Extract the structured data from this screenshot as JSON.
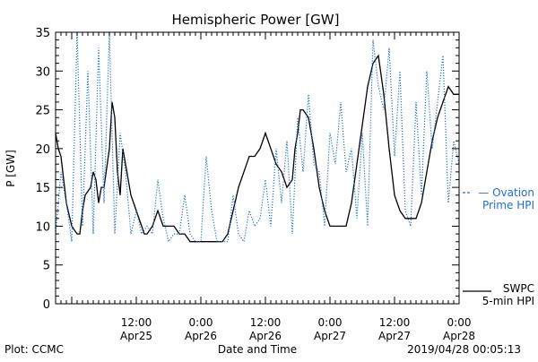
{
  "footer": {
    "plot_credit": "Plot: CCMC",
    "timestamp": "2019/04/28 00:05:13"
  },
  "colors": {
    "swpc": "#000000",
    "ovation": "#1f6fd0",
    "axes": "#000000"
  },
  "chart_data": {
    "type": "line",
    "title": "Hemispheric Power [GW]",
    "xlabel": "Date and Time",
    "ylabel": "P [GW]",
    "ylim": [
      0,
      35
    ],
    "yticks": [
      0,
      5,
      10,
      15,
      20,
      25,
      30,
      35
    ],
    "xlim": [
      "2019-04-24T21:00",
      "2019-04-28T00:00"
    ],
    "xticks": [
      {
        "x": "2019-04-25T12:00",
        "time": "12:00",
        "date": "Apr25"
      },
      {
        "x": "2019-04-26T00:00",
        "time": "0:00",
        "date": "Apr26"
      },
      {
        "x": "2019-04-26T12:00",
        "time": "12:00",
        "date": "Apr26"
      },
      {
        "x": "2019-04-27T00:00",
        "time": "0:00",
        "date": "Apr27"
      },
      {
        "x": "2019-04-27T12:00",
        "time": "12:00",
        "date": "Apr27"
      },
      {
        "x": "2019-04-28T00:00",
        "time": "0:00",
        "date": "Apr28"
      }
    ],
    "grid": false,
    "legend_placement": "right",
    "series": [
      {
        "name": "SWPC 5-min HPI",
        "legend_line1": "SWPC",
        "legend_line2": "5-min HPI",
        "style": "solid",
        "x": [
          "2019-04-24T21:00",
          "2019-04-24T21:30",
          "2019-04-24T22:00",
          "2019-04-24T23:00",
          "2019-04-25T00:00",
          "2019-04-25T01:00",
          "2019-04-25T01:30",
          "2019-04-25T02:00",
          "2019-04-25T02:30",
          "2019-04-25T03:30",
          "2019-04-25T04:00",
          "2019-04-25T04:30",
          "2019-04-25T05:00",
          "2019-04-25T05:30",
          "2019-04-25T06:00",
          "2019-04-25T07:00",
          "2019-04-25T07:30",
          "2019-04-25T08:00",
          "2019-04-25T08:30",
          "2019-04-25T09:00",
          "2019-04-25T09:30",
          "2019-04-25T10:00",
          "2019-04-25T11:00",
          "2019-04-25T12:00",
          "2019-04-25T13:00",
          "2019-04-25T13:30",
          "2019-04-25T14:00",
          "2019-04-25T15:00",
          "2019-04-25T15:30",
          "2019-04-25T16:00",
          "2019-04-25T17:00",
          "2019-04-25T18:00",
          "2019-04-25T19:00",
          "2019-04-25T20:00",
          "2019-04-25T21:00",
          "2019-04-25T22:00",
          "2019-04-25T23:00",
          "2019-04-26T00:00",
          "2019-04-26T01:00",
          "2019-04-26T02:00",
          "2019-04-26T03:00",
          "2019-04-26T04:00",
          "2019-04-26T05:00",
          "2019-04-26T06:00",
          "2019-04-26T07:00",
          "2019-04-26T08:00",
          "2019-04-26T09:00",
          "2019-04-26T10:00",
          "2019-04-26T11:00",
          "2019-04-26T12:00",
          "2019-04-26T13:00",
          "2019-04-26T14:00",
          "2019-04-26T15:00",
          "2019-04-26T16:00",
          "2019-04-26T17:00",
          "2019-04-26T17:30",
          "2019-04-26T18:00",
          "2019-04-26T18:30",
          "2019-04-26T19:00",
          "2019-04-26T20:00",
          "2019-04-26T21:00",
          "2019-04-26T22:00",
          "2019-04-26T23:00",
          "2019-04-27T00:00",
          "2019-04-27T01:00",
          "2019-04-27T02:00",
          "2019-04-27T03:00",
          "2019-04-27T04:00",
          "2019-04-27T05:00",
          "2019-04-27T06:00",
          "2019-04-27T07:00",
          "2019-04-27T08:00",
          "2019-04-27T09:00",
          "2019-04-27T10:00",
          "2019-04-27T11:00",
          "2019-04-27T12:00",
          "2019-04-27T13:00",
          "2019-04-27T14:00",
          "2019-04-27T15:00",
          "2019-04-27T16:00",
          "2019-04-27T17:00",
          "2019-04-27T18:00",
          "2019-04-27T19:00",
          "2019-04-27T20:00",
          "2019-04-27T21:00",
          "2019-04-27T22:00",
          "2019-04-27T23:00",
          "2019-04-28T00:00"
        ],
        "values": [
          22,
          20,
          19,
          13,
          10,
          9,
          9,
          12,
          14,
          15,
          17,
          16,
          13,
          15,
          15,
          20,
          26,
          24,
          17,
          14,
          20,
          18,
          14,
          12,
          10,
          9,
          9,
          10,
          11,
          12,
          10,
          10,
          10,
          9,
          9,
          8,
          8,
          8,
          8,
          8,
          8,
          8,
          9,
          12,
          15,
          17,
          19,
          19,
          20,
          22,
          20,
          18,
          17,
          15,
          16,
          20,
          22,
          25,
          25,
          24,
          20,
          15,
          12,
          10,
          10,
          10,
          10,
          13,
          18,
          23,
          28,
          31,
          32,
          27,
          20,
          14,
          12,
          11,
          11,
          11,
          13,
          17,
          21,
          24,
          26,
          28,
          27,
          27
        ]
      },
      {
        "name": "Ovation Prime HPI",
        "legend_line1": "Ovation",
        "legend_line2": "Prime HPI",
        "style": "dotted",
        "x": [
          "2019-04-24T21:00",
          "2019-04-24T22:00",
          "2019-04-24T23:00",
          "2019-04-25T00:00",
          "2019-04-25T01:00",
          "2019-04-25T02:00",
          "2019-04-25T03:00",
          "2019-04-25T04:00",
          "2019-04-25T05:00",
          "2019-04-25T06:00",
          "2019-04-25T07:00",
          "2019-04-25T08:00",
          "2019-04-25T09:00",
          "2019-04-25T10:00",
          "2019-04-25T11:00",
          "2019-04-25T12:00",
          "2019-04-25T13:00",
          "2019-04-25T14:00",
          "2019-04-25T15:00",
          "2019-04-25T16:00",
          "2019-04-25T17:00",
          "2019-04-25T18:00",
          "2019-04-25T19:00",
          "2019-04-25T20:00",
          "2019-04-25T21:00",
          "2019-04-25T22:00",
          "2019-04-25T23:00",
          "2019-04-26T00:00",
          "2019-04-26T01:00",
          "2019-04-26T02:00",
          "2019-04-26T03:00",
          "2019-04-26T04:00",
          "2019-04-26T05:00",
          "2019-04-26T06:00",
          "2019-04-26T07:00",
          "2019-04-26T08:00",
          "2019-04-26T09:00",
          "2019-04-26T10:00",
          "2019-04-26T11:00",
          "2019-04-26T12:00",
          "2019-04-26T13:00",
          "2019-04-26T14:00",
          "2019-04-26T15:00",
          "2019-04-26T16:00",
          "2019-04-26T17:00",
          "2019-04-26T18:00",
          "2019-04-26T19:00",
          "2019-04-26T20:00",
          "2019-04-26T21:00",
          "2019-04-26T22:00",
          "2019-04-26T23:00",
          "2019-04-27T00:00",
          "2019-04-27T01:00",
          "2019-04-27T02:00",
          "2019-04-27T03:00",
          "2019-04-27T04:00",
          "2019-04-27T05:00",
          "2019-04-27T06:00",
          "2019-04-27T07:00",
          "2019-04-27T08:00",
          "2019-04-27T09:00",
          "2019-04-27T10:00",
          "2019-04-27T11:00",
          "2019-04-27T12:00",
          "2019-04-27T13:00",
          "2019-04-27T14:00",
          "2019-04-27T15:00",
          "2019-04-27T16:00",
          "2019-04-27T17:00",
          "2019-04-27T18:00",
          "2019-04-27T19:00",
          "2019-04-27T20:00",
          "2019-04-27T21:00",
          "2019-04-27T22:00",
          "2019-04-27T23:00",
          "2019-04-28T00:00"
        ],
        "values": [
          9,
          17,
          13,
          8,
          35,
          10,
          30,
          9,
          33,
          13,
          35,
          9,
          22,
          17,
          9,
          12,
          9,
          10,
          9,
          16,
          11,
          8,
          9,
          9,
          14,
          9,
          8,
          8,
          19,
          12,
          8,
          8,
          8,
          14,
          9,
          8,
          12,
          10,
          11,
          16,
          10,
          20,
          13,
          21,
          9,
          24,
          17,
          27,
          18,
          17,
          10,
          22,
          18,
          26,
          17,
          20,
          11,
          22,
          10,
          34,
          28,
          25,
          33,
          19,
          30,
          12,
          10,
          26,
          14,
          30,
          20,
          26,
          32,
          13,
          21,
          18
        ]
      }
    ]
  }
}
